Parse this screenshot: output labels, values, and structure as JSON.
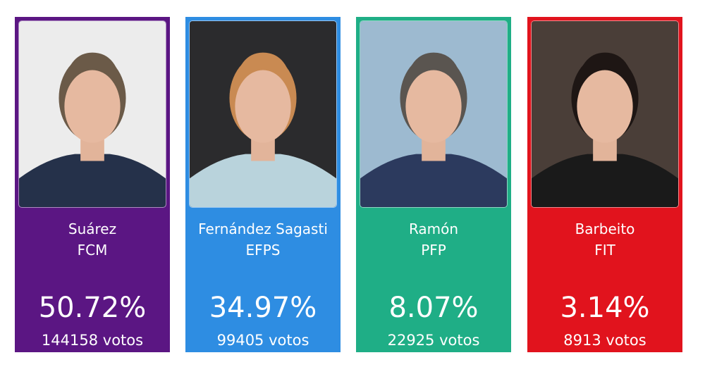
{
  "candidates": [
    {
      "name": "Suárez",
      "party": "FCM",
      "percent": "50.72%",
      "votes": "144158 votos",
      "color": "#5b1683",
      "photo_bg": "#ececec",
      "hair": "#6b5a48",
      "suit": "#25314a"
    },
    {
      "name": "Fernández Sagasti",
      "party": "EFPS",
      "percent": "34.97%",
      "votes": "99405 votos",
      "color": "#2e8de2",
      "photo_bg": "#2b2b2d",
      "hair": "#c98a52",
      "suit": "#b9d3dc"
    },
    {
      "name": "Ramón",
      "party": "PFP",
      "percent": "8.07%",
      "votes": "22925 votos",
      "color": "#1fae86",
      "photo_bg": "#9dbad0",
      "hair": "#5a5550",
      "suit": "#2c3a5e"
    },
    {
      "name": "Barbeito",
      "party": "FIT",
      "percent": "3.14%",
      "votes": "8913 votos",
      "color": "#e1131d",
      "photo_bg": "#4a3e38",
      "hair": "#1e1614",
      "suit": "#1a1a1a"
    }
  ]
}
